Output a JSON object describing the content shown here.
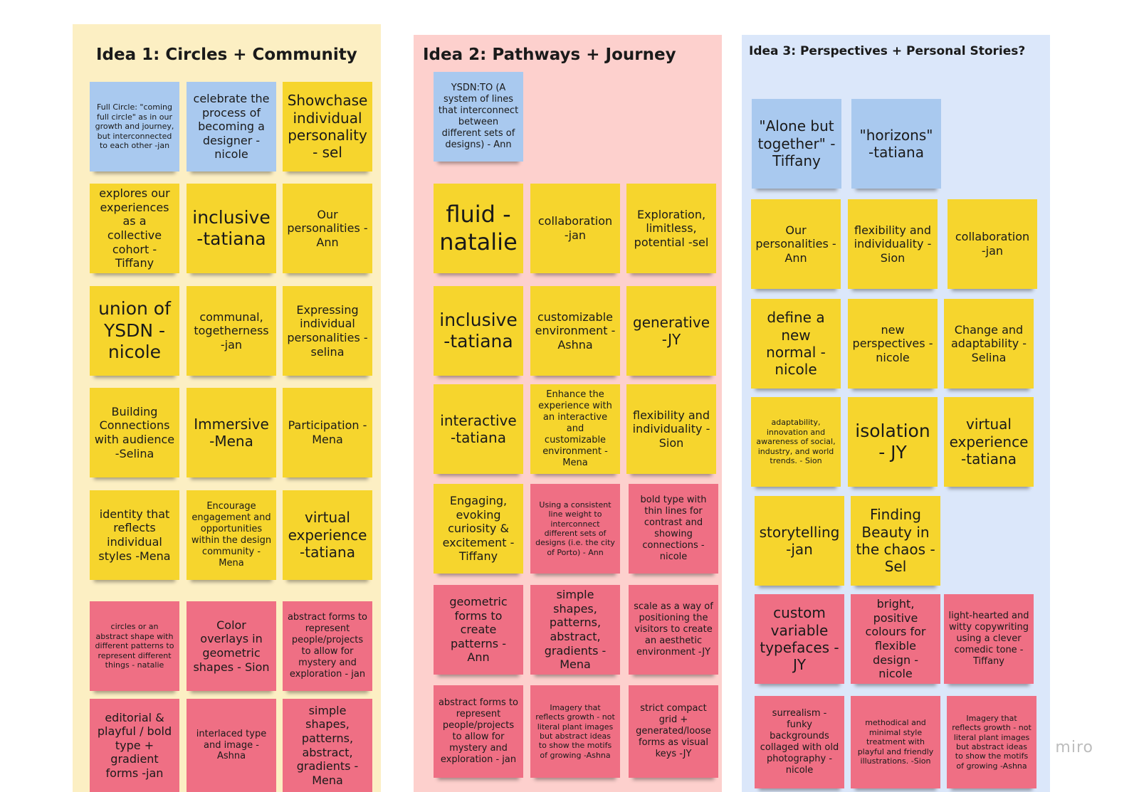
{
  "board": {
    "colors": {
      "yellow": "#f6d52d",
      "blue": "#a9c9ef",
      "pink": "#ef6f84"
    },
    "columns": [
      {
        "title": "Idea 1: Circles + Community",
        "background": "#fcefc3",
        "notes": [
          {
            "text": "Full Circle: \"coming full circle\" as in our growth and journey, but interconnected to each other -jan",
            "color": "blue"
          },
          {
            "text": "celebrate the process of becoming a designer - nicole",
            "color": "blue"
          },
          {
            "text": "Showchase individual personality - sel",
            "color": "yellow"
          },
          {
            "text": "explores our experiences as a collective cohort - Tiffany",
            "color": "yellow"
          },
          {
            "text": "inclusive -tatiana",
            "color": "yellow"
          },
          {
            "text": "Our personalities - Ann",
            "color": "yellow"
          },
          {
            "text": "union of YSDN - nicole",
            "color": "yellow"
          },
          {
            "text": "communal, togetherness -jan",
            "color": "yellow"
          },
          {
            "text": "Expressing individual personalities -selina",
            "color": "yellow"
          },
          {
            "text": "Building Connections with audience -Selina",
            "color": "yellow"
          },
          {
            "text": "Immersive -Mena",
            "color": "yellow"
          },
          {
            "text": "Participation -Mena",
            "color": "yellow"
          },
          {
            "text": "identity that reflects individual styles -Mena",
            "color": "yellow"
          },
          {
            "text": "Encourage engagement and opportunities within the design community -Mena",
            "color": "yellow"
          },
          {
            "text": "virtual experience -tatiana",
            "color": "yellow"
          },
          {
            "text": "circles or an abstract shape with different patterns to represent different things - natalie",
            "color": "pink"
          },
          {
            "text": "Color overlays in geometric shapes - Sion",
            "color": "pink"
          },
          {
            "text": "abstract forms to represent people/projects to allow for mystery and exploration - jan",
            "color": "pink"
          },
          {
            "text": "editorial & playful / bold type + gradient forms -jan",
            "color": "pink"
          },
          {
            "text": "interlaced type and image -Ashna",
            "color": "pink"
          },
          {
            "text": "simple shapes, patterns, abstract, gradients -Mena",
            "color": "pink"
          }
        ]
      },
      {
        "title": "Idea 2: Pathways + Journey",
        "background": "#fdd0cd",
        "notes": [
          {
            "text": "YSDN:TO (A system of lines that interconnect between different sets of designs) - Ann",
            "color": "blue"
          },
          {
            "text": "fluid - natalie",
            "color": "yellow"
          },
          {
            "text": "collaboration -jan",
            "color": "yellow"
          },
          {
            "text": "Exploration, limitless, potential -sel",
            "color": "yellow"
          },
          {
            "text": "inclusive -tatiana",
            "color": "yellow"
          },
          {
            "text": "customizable environment -Ashna",
            "color": "yellow"
          },
          {
            "text": "generative -JY",
            "color": "yellow"
          },
          {
            "text": "interactive -tatiana",
            "color": "yellow"
          },
          {
            "text": "Enhance the experience with an interactive and customizable environment -Mena",
            "color": "yellow"
          },
          {
            "text": "flexibility and individuality - Sion",
            "color": "yellow"
          },
          {
            "text": "Engaging, evoking curiosity & excitement - Tiffany",
            "color": "yellow"
          },
          {
            "text": "Using a consistent line weight to interconnect different sets of designs (i.e. the city of Porto) - Ann",
            "color": "pink"
          },
          {
            "text": "bold type with thin lines for contrast and showing connections - nicole",
            "color": "pink"
          },
          {
            "text": "geometric forms to create patterns - Ann",
            "color": "pink"
          },
          {
            "text": "simple shapes, patterns, abstract, gradients -Mena",
            "color": "pink"
          },
          {
            "text": "scale as a way of positioning the visitors to create an aesthetic environment -JY",
            "color": "pink"
          },
          {
            "text": "abstract forms to represent people/projects to allow for mystery and exploration - jan",
            "color": "pink"
          },
          {
            "text": "Imagery that reflects growth - not literal plant images but abstract ideas to show the motifs of growing -Ashna",
            "color": "pink"
          },
          {
            "text": "strict compact grid + generated/loose forms as visual keys -JY",
            "color": "pink"
          }
        ]
      },
      {
        "title": "Idea 3: Perspectives + Personal Stories?",
        "background": "#dbe7fa",
        "notes": [
          {
            "text": "\"Alone but together\" - Tiffany",
            "color": "blue"
          },
          {
            "text": "\"horizons\" -tatiana",
            "color": "blue"
          },
          {
            "text": "Our personalities - Ann",
            "color": "yellow"
          },
          {
            "text": "flexibility and individuality - Sion",
            "color": "yellow"
          },
          {
            "text": "collaboration -jan",
            "color": "yellow"
          },
          {
            "text": "define a new normal - nicole",
            "color": "yellow"
          },
          {
            "text": "new perspectives - nicole",
            "color": "yellow"
          },
          {
            "text": "Change and adaptability -Selina",
            "color": "yellow"
          },
          {
            "text": "adaptability, innovation and awareness of social, industry, and world trends. - Sion",
            "color": "yellow"
          },
          {
            "text": "isolation - JY",
            "color": "yellow"
          },
          {
            "text": "virtual experience -tatiana",
            "color": "yellow"
          },
          {
            "text": "storytelling -jan",
            "color": "yellow"
          },
          {
            "text": "Finding Beauty in the chaos -Sel",
            "color": "yellow"
          },
          {
            "text": "custom variable typefaces -JY",
            "color": "pink"
          },
          {
            "text": "bright, positive colours for flexible design - nicole",
            "color": "pink"
          },
          {
            "text": "light-hearted and witty copywriting using a clever comedic tone - Tiffany",
            "color": "pink"
          },
          {
            "text": "surrealism - funky backgrounds collaged with old photography - nicole",
            "color": "pink"
          },
          {
            "text": "methodical and minimal style treatment with playful and friendly illustrations. -Sion",
            "color": "pink"
          },
          {
            "text": "Imagery that reflects growth - not literal plant images but abstract ideas to show the motifs of growing -Ashna",
            "color": "pink"
          }
        ]
      }
    ],
    "watermark": "miro"
  }
}
